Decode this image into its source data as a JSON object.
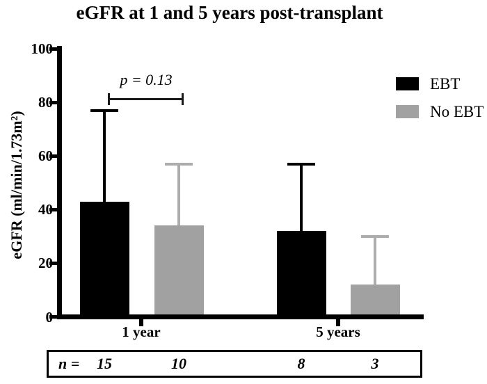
{
  "chart_data": {
    "type": "bar",
    "title": "eGFR at 1 and 5 years post-transplant",
    "ylabel": "eGFR (ml/min/1.73m²)",
    "xlabel": "",
    "ylim": [
      0,
      100
    ],
    "yticks": [
      0,
      20,
      40,
      60,
      80,
      100
    ],
    "grid": false,
    "legend_position": "top-right",
    "categories": [
      "1 year",
      "5 years"
    ],
    "series": [
      {
        "name": "EBT",
        "color": "#000000",
        "error_color": "#000000",
        "values": [
          43,
          32
        ],
        "error_top": [
          77,
          57
        ],
        "sd_up": [
          34,
          25
        ]
      },
      {
        "name": "No EBT",
        "color": "#a1a1a1",
        "error_color": "#adadad",
        "values": [
          34,
          12
        ],
        "error_top": [
          57,
          30
        ],
        "sd_up": [
          23,
          18
        ]
      }
    ],
    "annotation": {
      "text": "p = 0.13",
      "compares": [
        "EBT 1 year",
        "No EBT 1 year"
      ]
    },
    "n_row": {
      "label": "n =",
      "values": [
        "15",
        "10",
        "8",
        "3"
      ]
    }
  }
}
